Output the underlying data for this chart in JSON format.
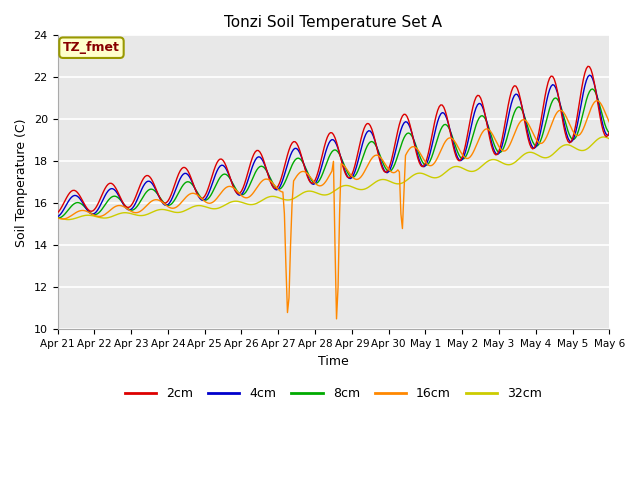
{
  "title": "Tonzi Soil Temperature Set A",
  "xlabel": "Time",
  "ylabel": "Soil Temperature (C)",
  "ylim": [
    10,
    24
  ],
  "yticks": [
    10,
    12,
    14,
    16,
    18,
    20,
    22,
    24
  ],
  "annotation": "TZ_fmet",
  "annotation_color": "#880000",
  "annotation_bg": "#ffffcc",
  "annotation_edge": "#999900",
  "plot_bg": "#e8e8e8",
  "series_colors": {
    "2cm": "#dd0000",
    "4cm": "#0000cc",
    "8cm": "#00aa00",
    "16cm": "#ff8800",
    "32cm": "#cccc00"
  },
  "series_labels": [
    "2cm",
    "4cm",
    "8cm",
    "16cm",
    "32cm"
  ],
  "xtick_labels": [
    "Apr 21",
    "Apr 22",
    "Apr 23",
    "Apr 24",
    "Apr 25",
    "Apr 26",
    "Apr 27",
    "Apr 28",
    "Apr 29",
    "Apr 30",
    "May 1",
    "May 2",
    "May 3",
    "May 4",
    "May 5",
    "May 6"
  ],
  "n_days": 16,
  "hours_per_day": 24
}
